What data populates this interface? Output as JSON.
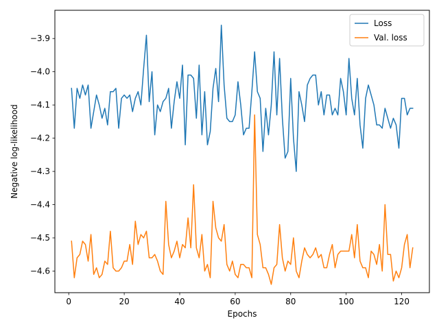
{
  "chart_data": {
    "type": "line",
    "title": "",
    "xlabel": "Epochs",
    "ylabel": "Negative log-likelihood",
    "xlim": [
      -5,
      130
    ],
    "ylim": [
      -4.665,
      -3.815
    ],
    "xticks": [
      0,
      20,
      40,
      60,
      80,
      100,
      120
    ],
    "yticks": [
      -4.6,
      -4.5,
      -4.4,
      -4.3,
      -4.2,
      -4.1,
      -4.0,
      -3.9
    ],
    "ytick_labels": [
      "−4.6",
      "−4.5",
      "−4.4",
      "−4.3",
      "−4.2",
      "−4.1",
      "−4.0",
      "−3.9"
    ],
    "grid": false,
    "legend_position": "top-right",
    "series": [
      {
        "name": "Loss",
        "color": "#1f77b4",
        "x": [
          1,
          2,
          3,
          4,
          5,
          6,
          7,
          8,
          9,
          10,
          11,
          12,
          13,
          14,
          15,
          16,
          17,
          18,
          19,
          20,
          21,
          22,
          23,
          24,
          25,
          26,
          27,
          28,
          29,
          30,
          31,
          32,
          33,
          34,
          35,
          36,
          37,
          38,
          39,
          40,
          41,
          42,
          43,
          44,
          45,
          46,
          47,
          48,
          49,
          50,
          51,
          52,
          53,
          54,
          55,
          56,
          57,
          58,
          59,
          60,
          61,
          62,
          63,
          64,
          65,
          66,
          67,
          68,
          69,
          70,
          71,
          72,
          73,
          74,
          75,
          76,
          77,
          78,
          79,
          80,
          81,
          82,
          83,
          84,
          85,
          86,
          87,
          88,
          89,
          90,
          91,
          92,
          93,
          94,
          95,
          96,
          97,
          98,
          99,
          100,
          101,
          102,
          103,
          104,
          105,
          106,
          107,
          108,
          109,
          110,
          111,
          112,
          113,
          114,
          115,
          116,
          117,
          118,
          119,
          120,
          121,
          122,
          123,
          124
        ],
        "values": [
          -4.05,
          -4.17,
          -4.05,
          -4.08,
          -4.04,
          -4.07,
          -4.04,
          -4.17,
          -4.12,
          -4.07,
          -4.1,
          -4.14,
          -4.11,
          -4.16,
          -4.06,
          -4.06,
          -4.05,
          -4.17,
          -4.08,
          -4.07,
          -4.08,
          -4.07,
          -4.12,
          -4.08,
          -4.06,
          -4.1,
          -3.99,
          -3.89,
          -4.09,
          -4.0,
          -4.19,
          -4.1,
          -4.12,
          -4.09,
          -4.08,
          -4.05,
          -4.17,
          -4.09,
          -4.03,
          -4.08,
          -3.98,
          -4.22,
          -4.01,
          -4.01,
          -4.02,
          -4.14,
          -3.98,
          -4.19,
          -4.06,
          -4.22,
          -4.18,
          -4.05,
          -3.99,
          -4.09,
          -3.86,
          -4.04,
          -4.14,
          -4.15,
          -4.15,
          -4.13,
          -4.03,
          -4.1,
          -4.19,
          -4.17,
          -4.17,
          -4.06,
          -3.94,
          -4.06,
          -4.08,
          -4.24,
          -4.11,
          -4.19,
          -4.1,
          -3.94,
          -4.13,
          -3.96,
          -4.14,
          -4.26,
          -4.24,
          -4.02,
          -4.2,
          -4.3,
          -4.06,
          -4.1,
          -4.15,
          -4.04,
          -4.02,
          -4.01,
          -4.01,
          -4.1,
          -4.06,
          -4.13,
          -4.07,
          -4.07,
          -4.13,
          -4.11,
          -4.13,
          -4.02,
          -4.06,
          -4.13,
          -3.96,
          -4.08,
          -4.13,
          -4.02,
          -4.16,
          -4.23,
          -4.08,
          -4.04,
          -4.07,
          -4.1,
          -4.16,
          -4.16,
          -4.17,
          -4.11,
          -4.14,
          -4.17,
          -4.14,
          -4.16,
          -4.23,
          -4.08,
          -4.08,
          -4.13,
          -4.11,
          -4.11
        ]
      },
      {
        "name": "Val. loss",
        "color": "#ff7f0e",
        "x": [
          1,
          2,
          3,
          4,
          5,
          6,
          7,
          8,
          9,
          10,
          11,
          12,
          13,
          14,
          15,
          16,
          17,
          18,
          19,
          20,
          21,
          22,
          23,
          24,
          25,
          26,
          27,
          28,
          29,
          30,
          31,
          32,
          33,
          34,
          35,
          36,
          37,
          38,
          39,
          40,
          41,
          42,
          43,
          44,
          45,
          46,
          47,
          48,
          49,
          50,
          51,
          52,
          53,
          54,
          55,
          56,
          57,
          58,
          59,
          60,
          61,
          62,
          63,
          64,
          65,
          66,
          67,
          68,
          69,
          70,
          71,
          72,
          73,
          74,
          75,
          76,
          77,
          78,
          79,
          80,
          81,
          82,
          83,
          84,
          85,
          86,
          87,
          88,
          89,
          90,
          91,
          92,
          93,
          94,
          95,
          96,
          97,
          98,
          99,
          100,
          101,
          102,
          103,
          104,
          105,
          106,
          107,
          108,
          109,
          110,
          111,
          112,
          113,
          114,
          115,
          116,
          117,
          118,
          119,
          120,
          121,
          122,
          123,
          124
        ],
        "values": [
          -4.51,
          -4.62,
          -4.56,
          -4.55,
          -4.51,
          -4.52,
          -4.57,
          -4.49,
          -4.61,
          -4.59,
          -4.62,
          -4.61,
          -4.57,
          -4.58,
          -4.48,
          -4.59,
          -4.6,
          -4.6,
          -4.59,
          -4.57,
          -4.57,
          -4.52,
          -4.58,
          -4.45,
          -4.52,
          -4.49,
          -4.5,
          -4.48,
          -4.56,
          -4.56,
          -4.55,
          -4.57,
          -4.6,
          -4.61,
          -4.39,
          -4.52,
          -4.56,
          -4.54,
          -4.51,
          -4.56,
          -4.52,
          -4.53,
          -4.44,
          -4.53,
          -4.34,
          -4.53,
          -4.56,
          -4.49,
          -4.6,
          -4.58,
          -4.62,
          -4.39,
          -4.47,
          -4.5,
          -4.51,
          -4.46,
          -4.58,
          -4.6,
          -4.57,
          -4.61,
          -4.62,
          -4.58,
          -4.58,
          -4.59,
          -4.59,
          -4.62,
          -4.13,
          -4.49,
          -4.52,
          -4.59,
          -4.59,
          -4.61,
          -4.64,
          -4.59,
          -4.58,
          -4.46,
          -4.56,
          -4.6,
          -4.57,
          -4.58,
          -4.5,
          -4.6,
          -4.62,
          -4.57,
          -4.53,
          -4.55,
          -4.56,
          -4.55,
          -4.53,
          -4.56,
          -4.55,
          -4.59,
          -4.59,
          -4.55,
          -4.52,
          -4.59,
          -4.55,
          -4.54,
          -4.54,
          -4.54,
          -4.54,
          -4.49,
          -4.56,
          -4.46,
          -4.57,
          -4.59,
          -4.59,
          -4.62,
          -4.54,
          -4.55,
          -4.58,
          -4.52,
          -4.6,
          -4.4,
          -4.55,
          -4.55,
          -4.63,
          -4.6,
          -4.62,
          -4.59,
          -4.52,
          -4.49,
          -4.59,
          -4.53
        ]
      }
    ]
  }
}
